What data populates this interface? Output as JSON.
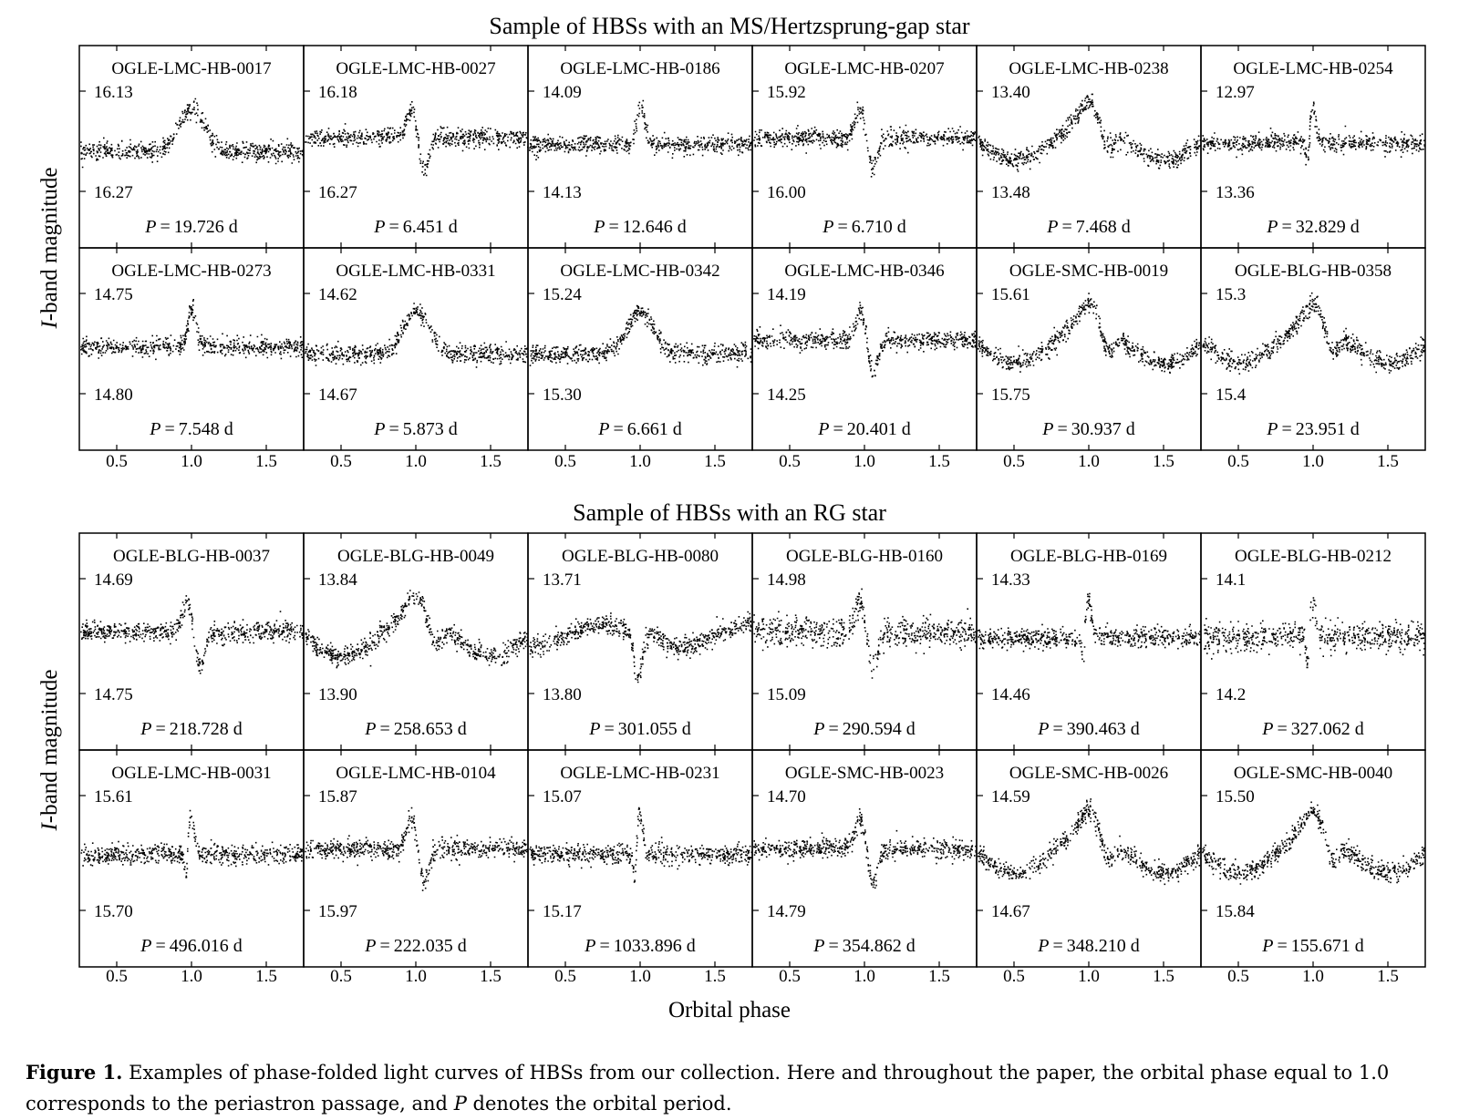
{
  "figure": {
    "section_titles": [
      "Sample of HBSs with an MS/Hertzsprung-gap star",
      "Sample of HBSs with an RG star"
    ],
    "ylabel_prefix": "I",
    "ylabel_suffix": "-band magnitude",
    "xlabel": "Orbital phase",
    "x_ticks": [
      "0.5",
      "1.0",
      "1.5"
    ],
    "caption_label": "Figure 1.",
    "caption_text": " Examples of phase-folded light curves of HBSs from our collection. Here and throughout the paper, the orbital phase equal to 1.0 corresponds to the periastron passage, and ",
    "caption_var": "P",
    "caption_end": " denotes the orbital period."
  },
  "chart_data": [
    {
      "type": "scatter",
      "section": 0,
      "row": 0,
      "col": 0,
      "title": "OGLE-LMC-HB-0017",
      "top": "16.13",
      "bottom": "16.27",
      "period": "19.726 d",
      "shape": "broad",
      "xlim": [
        0.25,
        1.75
      ]
    },
    {
      "type": "scatter",
      "section": 0,
      "row": 0,
      "col": 1,
      "title": "OGLE-LMC-HB-0027",
      "top": "16.18",
      "bottom": "16.27",
      "period": "6.451 d",
      "shape": "wave",
      "xlim": [
        0.25,
        1.75
      ]
    },
    {
      "type": "scatter",
      "section": 0,
      "row": 0,
      "col": 2,
      "title": "OGLE-LMC-HB-0186",
      "top": "14.09",
      "bottom": "14.13",
      "period": "12.646 d",
      "shape": "narrow",
      "xlim": [
        0.25,
        1.75
      ]
    },
    {
      "type": "scatter",
      "section": 0,
      "row": 0,
      "col": 3,
      "title": "OGLE-LMC-HB-0207",
      "top": "15.92",
      "bottom": "16.00",
      "period": "6.710 d",
      "shape": "wave",
      "xlim": [
        0.25,
        1.75
      ]
    },
    {
      "type": "scatter",
      "section": 0,
      "row": 0,
      "col": 4,
      "title": "OGLE-LMC-HB-0238",
      "top": "13.40",
      "bottom": "13.48",
      "period": "7.468 d",
      "shape": "sine",
      "xlim": [
        0.25,
        1.75
      ]
    },
    {
      "type": "scatter",
      "section": 0,
      "row": 0,
      "col": 5,
      "title": "OGLE-LMC-HB-0254",
      "top": "12.97",
      "bottom": "13.36",
      "period": "32.829 d",
      "shape": "sharpwave",
      "xlim": [
        0.25,
        1.75
      ]
    },
    {
      "type": "scatter",
      "section": 0,
      "row": 1,
      "col": 0,
      "title": "OGLE-LMC-HB-0273",
      "top": "14.75",
      "bottom": "14.80",
      "period": "7.548 d",
      "shape": "narrow",
      "xlim": [
        0.25,
        1.75
      ]
    },
    {
      "type": "scatter",
      "section": 0,
      "row": 1,
      "col": 1,
      "title": "OGLE-LMC-HB-0331",
      "top": "14.62",
      "bottom": "14.67",
      "period": "5.873 d",
      "shape": "broad",
      "xlim": [
        0.25,
        1.75
      ]
    },
    {
      "type": "scatter",
      "section": 0,
      "row": 1,
      "col": 2,
      "title": "OGLE-LMC-HB-0342",
      "top": "15.24",
      "bottom": "15.30",
      "period": "6.661 d",
      "shape": "broad",
      "xlim": [
        0.25,
        1.75
      ]
    },
    {
      "type": "scatter",
      "section": 0,
      "row": 1,
      "col": 3,
      "title": "OGLE-LMC-HB-0346",
      "top": "14.19",
      "bottom": "14.25",
      "period": "20.401 d",
      "shape": "wave",
      "xlim": [
        0.25,
        1.75
      ]
    },
    {
      "type": "scatter",
      "section": 0,
      "row": 1,
      "col": 4,
      "title": "OGLE-SMC-HB-0019",
      "top": "15.61",
      "bottom": "15.75",
      "period": "30.937 d",
      "shape": "sine",
      "xlim": [
        0.25,
        1.75
      ]
    },
    {
      "type": "scatter",
      "section": 0,
      "row": 1,
      "col": 5,
      "title": "OGLE-BLG-HB-0358",
      "top": "15.3",
      "bottom": "15.4",
      "period": "23.951 d",
      "shape": "sine",
      "xlim": [
        0.25,
        1.75
      ]
    },
    {
      "type": "scatter",
      "section": 1,
      "row": 0,
      "col": 0,
      "title": "OGLE-BLG-HB-0037",
      "top": "14.69",
      "bottom": "14.75",
      "period": "218.728 d",
      "shape": "wave",
      "xlim": [
        0.25,
        1.75
      ]
    },
    {
      "type": "scatter",
      "section": 1,
      "row": 0,
      "col": 1,
      "title": "OGLE-BLG-HB-0049",
      "top": "13.84",
      "bottom": "13.90",
      "period": "258.653 d",
      "shape": "sine",
      "xlim": [
        0.25,
        1.75
      ]
    },
    {
      "type": "scatter",
      "section": 1,
      "row": 0,
      "col": 2,
      "title": "OGLE-BLG-HB-0080",
      "top": "13.71",
      "bottom": "13.80",
      "period": "301.055 d",
      "shape": "dip",
      "xlim": [
        0.25,
        1.75
      ]
    },
    {
      "type": "scatter",
      "section": 1,
      "row": 0,
      "col": 3,
      "title": "OGLE-BLG-HB-0160",
      "top": "14.98",
      "bottom": "15.09",
      "period": "290.594 d",
      "shape": "wave",
      "xlim": [
        0.25,
        1.75
      ]
    },
    {
      "type": "scatter",
      "section": 1,
      "row": 0,
      "col": 4,
      "title": "OGLE-BLG-HB-0169",
      "top": "14.33",
      "bottom": "14.46",
      "period": "390.463 d",
      "shape": "sharpwave",
      "xlim": [
        0.25,
        1.75
      ]
    },
    {
      "type": "scatter",
      "section": 1,
      "row": 0,
      "col": 5,
      "title": "OGLE-BLG-HB-0212",
      "top": "14.1",
      "bottom": "14.2",
      "period": "327.062 d",
      "shape": "sharpwave",
      "xlim": [
        0.25,
        1.75
      ]
    },
    {
      "type": "scatter",
      "section": 1,
      "row": 1,
      "col": 0,
      "title": "OGLE-LMC-HB-0031",
      "top": "15.61",
      "bottom": "15.70",
      "period": "496.016 d",
      "shape": "sharpwave",
      "xlim": [
        0.25,
        1.75
      ]
    },
    {
      "type": "scatter",
      "section": 1,
      "row": 1,
      "col": 1,
      "title": "OGLE-LMC-HB-0104",
      "top": "15.87",
      "bottom": "15.97",
      "period": "222.035 d",
      "shape": "wave",
      "xlim": [
        0.25,
        1.75
      ]
    },
    {
      "type": "scatter",
      "section": 1,
      "row": 1,
      "col": 2,
      "title": "OGLE-LMC-HB-0231",
      "top": "15.07",
      "bottom": "15.17",
      "period": "1033.896 d",
      "shape": "sharpwave",
      "xlim": [
        0.25,
        1.75
      ]
    },
    {
      "type": "scatter",
      "section": 1,
      "row": 1,
      "col": 3,
      "title": "OGLE-SMC-HB-0023",
      "top": "14.70",
      "bottom": "14.79",
      "period": "354.862 d",
      "shape": "wave",
      "xlim": [
        0.25,
        1.75
      ]
    },
    {
      "type": "scatter",
      "section": 1,
      "row": 1,
      "col": 4,
      "title": "OGLE-SMC-HB-0026",
      "top": "14.59",
      "bottom": "14.67",
      "period": "348.210 d",
      "shape": "sine",
      "xlim": [
        0.25,
        1.75
      ]
    },
    {
      "type": "scatter",
      "section": 1,
      "row": 1,
      "col": 5,
      "title": "OGLE-SMC-HB-0040",
      "top": "15.50",
      "bottom": "15.84",
      "period": "155.671 d",
      "shape": "sine",
      "xlim": [
        0.25,
        1.75
      ]
    }
  ]
}
